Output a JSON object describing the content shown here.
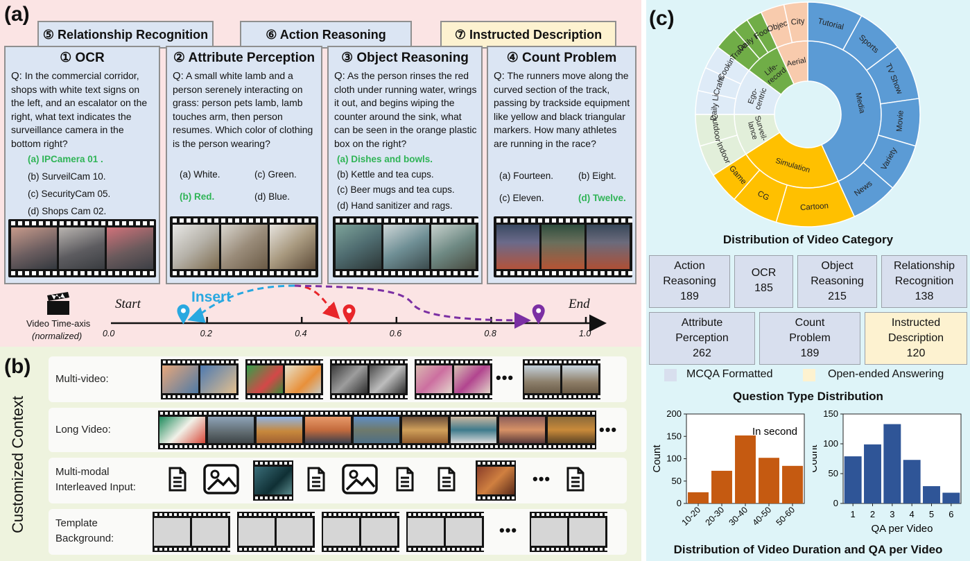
{
  "panel_a": {
    "label": "(a)",
    "behind_cards": [
      {
        "title": "⑤ Relationship Recognition"
      },
      {
        "title": "⑥ Action Reasoning"
      },
      {
        "title": "⑦ Instructed Description"
      }
    ],
    "cards": [
      {
        "title": "① OCR",
        "question": "In the commercial corridor, shops with white text signs on the left, and an escalator on the right, what text indicates the surveillance camera in the bottom right?",
        "options": [
          "(a) IPCamera 01 .",
          "(b) SurveilCam 10.",
          "(c) SecurityCam 05.",
          "(d) Shops Cam 02."
        ]
      },
      {
        "title": "② Attribute Perception",
        "question": "A small white lamb and a person serenely interacting on grass: person pets lamb, lamb touches arm, then person resumes. Which color of clothing is the person wearing?",
        "options": [
          "(a) White.",
          "(c) Green.",
          "(b) Red.",
          "(d) Blue."
        ]
      },
      {
        "title": "③ Object Reasoning",
        "question": "As the person rinses the red cloth under running water, wrings it out, and begins wiping the counter around the sink, what can be seen in the orange plastic box on the right?",
        "options": [
          "(a) Dishes and bowls.",
          "(b) Kettle and tea cups.",
          "(c) Beer mugs and tea cups.",
          "(d) Hand sanitizer and rags."
        ]
      },
      {
        "title": "④ Count Problem",
        "question": "The runners move along the curved section of the track, passing by trackside equipment like yellow and black triangular markers. How many athletes are running in the race?",
        "options": [
          "(a) Fourteen.",
          "(b) Eight.",
          "(c) Eleven.",
          "(d) Twelve."
        ]
      }
    ],
    "q_prefix": "Q:",
    "timeline": {
      "axis_label": "Video Time-axis",
      "axis_sub": "(normalized)",
      "start": "Start",
      "end": "End",
      "insert": "Insert",
      "ticks": [
        "0.0",
        "0.2",
        "0.4",
        "0.6",
        "0.8",
        "1.0"
      ],
      "pins": [
        {
          "position": 0.15,
          "color": "#29a8e0"
        },
        {
          "position": 0.5,
          "color": "#e8262a"
        },
        {
          "position": 0.9,
          "color": "#7b2fa3"
        }
      ]
    }
  },
  "panel_b": {
    "label": "(b)",
    "side_title": "Customized Context",
    "rows": [
      {
        "label": "Multi-video:"
      },
      {
        "label": "Long Video:"
      },
      {
        "label": "Multi-modal\nInterleaved Input:"
      },
      {
        "label": "Template\nBackground:"
      }
    ],
    "ellipsis": "…",
    "ellipsis_dots": "•••"
  },
  "panel_c": {
    "label": "(c)",
    "sunburst_title": "Distribution of Video Category",
    "sunburst": {
      "inner": [
        {
          "name": "Media",
          "value": 38,
          "color": "#5b9bd5"
        },
        {
          "name": "Simulation",
          "value": 20,
          "color": "#ffc000"
        },
        {
          "name": "Surveil-\nlance",
          "value": 8,
          "color": "#e2efda"
        },
        {
          "name": "Ego-\ncentric",
          "value": 9,
          "color": "#deebf7"
        },
        {
          "name": "Life-\nrecord",
          "value": 7,
          "color": "#70ad47"
        },
        {
          "name": "Aerial",
          "value": 6,
          "color": "#f8cbad"
        }
      ],
      "outer": [
        {
          "name": "Tutorial",
          "value": 7,
          "color": "#5b9bd5"
        },
        {
          "name": "Sports",
          "value": 6,
          "color": "#5b9bd5"
        },
        {
          "name": "TV Show",
          "value": 7,
          "color": "#5b9bd5"
        },
        {
          "name": "Movie",
          "value": 6,
          "color": "#5b9bd5"
        },
        {
          "name": "Variety",
          "value": 6,
          "color": "#5b9bd5"
        },
        {
          "name": "News",
          "value": 6,
          "color": "#5b9bd5"
        },
        {
          "name": "Cartoon",
          "value": 10,
          "color": "#ffc000"
        },
        {
          "name": "CG",
          "value": 6,
          "color": "#ffc000"
        },
        {
          "name": "Game",
          "value": 4,
          "color": "#ffc000"
        },
        {
          "name": "Indoor",
          "value": 4,
          "color": "#e2efda"
        },
        {
          "name": "Outdoor",
          "value": 4,
          "color": "#e2efda"
        },
        {
          "name": "Daily Life",
          "value": 3,
          "color": "#deebf7"
        },
        {
          "name": "Crafts",
          "value": 3,
          "color": "#deebf7"
        },
        {
          "name": "Cooking",
          "value": 3,
          "color": "#deebf7"
        },
        {
          "name": "Travel",
          "value": 3,
          "color": "#70ad47"
        },
        {
          "name": "Daily Life",
          "value": 2,
          "color": "#70ad47"
        },
        {
          "name": "Food",
          "value": 2,
          "color": "#70ad47"
        },
        {
          "name": "Object",
          "value": 3,
          "color": "#f8cbad"
        },
        {
          "name": "City",
          "value": 3,
          "color": "#f8cbad"
        }
      ]
    },
    "qtypes": [
      {
        "name": "Action\nReasoning",
        "count": "189",
        "color": "#d8dfee"
      },
      {
        "name": "OCR",
        "count": "185",
        "color": "#d8dfee"
      },
      {
        "name": "Object\nReasoning",
        "count": "215",
        "color": "#d8dfee"
      },
      {
        "name": "Relationship\nRecognition",
        "count": "138",
        "color": "#d8dfee"
      },
      {
        "name": "Attribute\nPerception",
        "count": "262",
        "color": "#d8dfee"
      },
      {
        "name": "Count\nProblem",
        "count": "189",
        "color": "#d8dfee"
      },
      {
        "name": "Instructed\nDescription",
        "count": "120",
        "color": "#fdf2d0"
      }
    ],
    "legend": {
      "mcqa": "MCQA Formatted",
      "open": "Open-ended Answering"
    },
    "qtype_title": "Question Type Distribution",
    "bottom_title": "Distribution of Video Duration and QA per Video"
  },
  "chart_data": [
    {
      "type": "bar",
      "categories": [
        "10-20",
        "20-30",
        "30-40",
        "40-50",
        "50-60"
      ],
      "values": [
        25,
        73,
        152,
        102,
        84
      ],
      "ylabel": "Count",
      "annotation": "In second",
      "ylim": [
        0,
        200
      ],
      "yticks": [
        "0",
        "50",
        "100",
        "150",
        "200"
      ],
      "color": "#c55a11"
    },
    {
      "type": "bar",
      "categories": [
        "1",
        "2",
        "3",
        "4",
        "5",
        "6"
      ],
      "values": [
        79,
        99,
        133,
        73,
        29,
        18
      ],
      "xlabel": "QA per Video",
      "ylabel": "Count",
      "ylim": [
        0,
        150
      ],
      "yticks": [
        "0",
        "50",
        "100",
        "150"
      ],
      "color": "#2f5597"
    }
  ]
}
